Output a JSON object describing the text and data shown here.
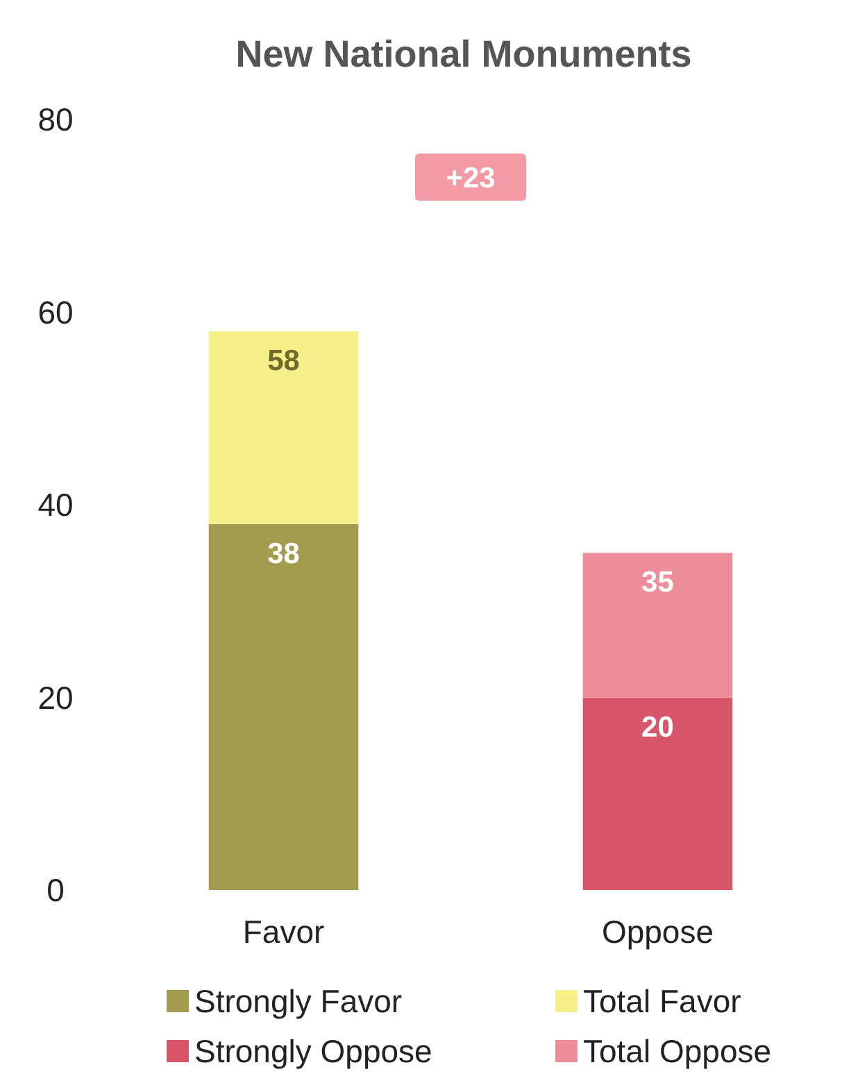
{
  "chart_data": {
    "type": "bar",
    "title": "New National Monuments",
    "categories": [
      "Favor",
      "Oppose"
    ],
    "stacked": true,
    "series": [
      {
        "name": "Strongly Favor",
        "color": "#a39c4e",
        "values": [
          38,
          null
        ],
        "value_labels": [
          "38",
          null
        ]
      },
      {
        "name": "Total Favor",
        "color": "#f5f08c",
        "values": [
          20,
          null
        ]
      },
      {
        "name": "Strongly Oppose",
        "color": "#d9566a",
        "values": [
          null,
          20
        ],
        "value_labels": [
          null,
          "20"
        ]
      },
      {
        "name": "Total Oppose",
        "color": "#ee8e9a",
        "values": [
          null,
          15
        ]
      }
    ],
    "totals": [
      "58",
      "35"
    ],
    "ylim": [
      0,
      80
    ],
    "yticks": [
      0,
      20,
      40,
      60,
      80
    ],
    "grid": false,
    "legend": "bottom",
    "annotations": [
      "+23"
    ]
  }
}
